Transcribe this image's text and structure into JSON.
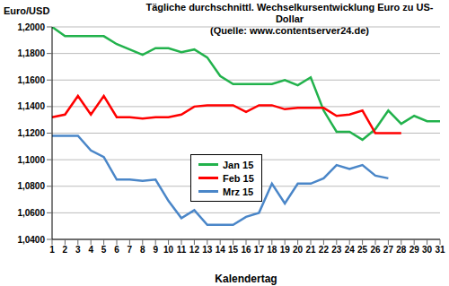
{
  "chart_data": {
    "type": "line",
    "title": "Tägliche durchschnittl. Wechselkursentwicklung Euro zu US-Dollar",
    "subtitle": "(Quelle: www.contentserver24.de)",
    "x_label": "Kalendertag",
    "y_label": "Euro/USD",
    "categories": [
      "1",
      "2",
      "3",
      "4",
      "5",
      "6",
      "7",
      "8",
      "9",
      "10",
      "11",
      "12",
      "13",
      "14",
      "15",
      "16",
      "17",
      "18",
      "19",
      "20",
      "21",
      "22",
      "23",
      "24",
      "25",
      "26",
      "27",
      "28",
      "29",
      "30",
      "31"
    ],
    "series": [
      {
        "name": "Jan 15",
        "color": "#22b24c",
        "values": [
          1.2,
          1.193,
          1.193,
          1.193,
          1.193,
          1.187,
          1.183,
          1.179,
          1.184,
          1.184,
          1.181,
          1.183,
          1.177,
          1.163,
          1.157,
          1.157,
          1.157,
          1.157,
          1.16,
          1.156,
          1.162,
          1.137,
          1.121,
          1.121,
          1.115,
          1.123,
          1.137,
          1.127,
          1.133,
          1.129,
          1.129
        ]
      },
      {
        "name": "Feb 15",
        "color": "#ff0000",
        "values": [
          1.132,
          1.134,
          1.148,
          1.134,
          1.148,
          1.132,
          1.132,
          1.131,
          1.132,
          1.132,
          1.134,
          1.14,
          1.141,
          1.141,
          1.141,
          1.136,
          1.141,
          1.141,
          1.138,
          1.139,
          1.139,
          1.139,
          1.133,
          1.134,
          1.137,
          1.12,
          1.12,
          1.12,
          null,
          null,
          null
        ]
      },
      {
        "name": "Mrz 15",
        "color": "#4a86c8",
        "values": [
          1.118,
          1.118,
          1.118,
          1.107,
          1.102,
          1.085,
          1.085,
          1.084,
          1.085,
          1.069,
          1.056,
          1.062,
          1.051,
          1.051,
          1.051,
          1.057,
          1.06,
          1.082,
          1.067,
          1.082,
          1.082,
          1.086,
          1.096,
          1.093,
          1.096,
          1.088,
          1.086,
          null,
          null,
          null,
          null
        ]
      }
    ],
    "ylim": [
      1.04,
      1.2
    ],
    "yticks": [
      {
        "value": 1.04,
        "label": "1,0400"
      },
      {
        "value": 1.06,
        "label": "1,0600"
      },
      {
        "value": 1.08,
        "label": "1,0800"
      },
      {
        "value": 1.1,
        "label": "1,1000"
      },
      {
        "value": 1.12,
        "label": "1,1200"
      },
      {
        "value": 1.14,
        "label": "1,1400"
      },
      {
        "value": 1.16,
        "label": "1,1600"
      },
      {
        "value": 1.18,
        "label": "1,1800"
      },
      {
        "value": 1.2,
        "label": "1,2000"
      }
    ],
    "grid": true,
    "legend": "center"
  }
}
